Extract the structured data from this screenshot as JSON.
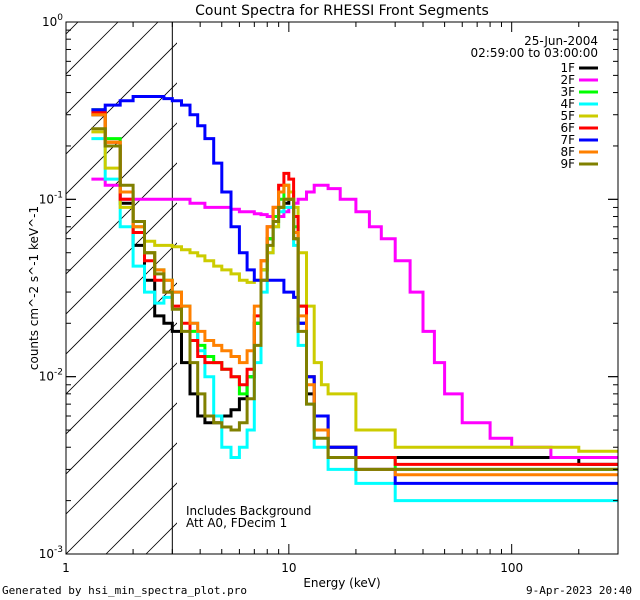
{
  "chart_data": {
    "type": "line",
    "title": "Count Spectra for RHESSI Front Segments",
    "xlabel": "Energy (keV)",
    "ylabel": "counts cm^-2 s^-1 keV^-1",
    "xscale": "log",
    "yscale": "log",
    "xlim": [
      1,
      300
    ],
    "ylim": [
      0.001,
      1
    ],
    "x_ticks": [
      {
        "value": 1,
        "label": "1"
      },
      {
        "value": 10,
        "label": "10"
      },
      {
        "value": 100,
        "label": "100"
      }
    ],
    "y_ticks": [
      {
        "value": 0.001,
        "base": "10",
        "exp": "-3"
      },
      {
        "value": 0.01,
        "base": "10",
        "exp": "-2"
      },
      {
        "value": 0.1,
        "base": "10",
        "exp": "-1"
      },
      {
        "value": 1,
        "base": "10",
        "exp": "0"
      }
    ],
    "date": "25-Jun-2004",
    "time_range": "02:59:00 to 03:00:00",
    "annotation_lines": [
      "Includes Background",
      "Att A0, FDecim 1"
    ],
    "shaded_region_max_kev": 3,
    "legend_position": "top-right",
    "series": [
      {
        "name": "1F",
        "color": "#000000",
        "x": [
          1.3,
          1.5,
          1.75,
          2,
          2.25,
          2.5,
          2.75,
          3,
          3.3,
          3.6,
          3.9,
          4.2,
          4.6,
          5,
          5.5,
          6,
          6.5,
          7,
          7.5,
          8,
          8.5,
          9,
          9.5,
          10,
          10.5,
          11,
          12,
          13,
          15,
          20,
          30,
          50,
          80,
          120,
          200,
          300
        ],
        "y": [
          0.3,
          0.2,
          0.095,
          0.055,
          0.035,
          0.022,
          0.02,
          0.018,
          0.012,
          0.008,
          0.006,
          0.0055,
          0.0055,
          0.006,
          0.0065,
          0.0075,
          0.01,
          0.02,
          0.04,
          0.06,
          0.08,
          0.09,
          0.095,
          0.1,
          0.06,
          0.02,
          0.008,
          0.005,
          0.004,
          0.0035,
          0.0035,
          0.0035,
          0.0035,
          0.0035,
          0.0032,
          0.0032
        ]
      },
      {
        "name": "2F",
        "color": "#ff00ff",
        "x": [
          1.3,
          1.5,
          1.75,
          2,
          2.25,
          2.5,
          2.75,
          3,
          3.3,
          3.6,
          3.9,
          4.2,
          4.6,
          5,
          5.5,
          6,
          6.5,
          7,
          7.5,
          8,
          8.5,
          9,
          9.5,
          10,
          10.5,
          11,
          12,
          13,
          14,
          15,
          17,
          20,
          23,
          26,
          30,
          35,
          40,
          45,
          50,
          60,
          80,
          100,
          130,
          150,
          200,
          250,
          300
        ],
        "y": [
          0.13,
          0.12,
          0.1,
          0.1,
          0.1,
          0.1,
          0.1,
          0.1,
          0.1,
          0.095,
          0.095,
          0.09,
          0.09,
          0.09,
          0.088,
          0.085,
          0.085,
          0.083,
          0.082,
          0.08,
          0.08,
          0.08,
          0.085,
          0.09,
          0.095,
          0.1,
          0.11,
          0.12,
          0.12,
          0.115,
          0.1,
          0.085,
          0.07,
          0.06,
          0.045,
          0.03,
          0.018,
          0.012,
          0.008,
          0.0055,
          0.0045,
          0.004,
          0.004,
          0.0035,
          0.0035,
          0.0035,
          0.0035
        ]
      },
      {
        "name": "3F",
        "color": "#00ff00",
        "x": [
          1.3,
          1.5,
          1.75,
          2,
          2.25,
          2.5,
          2.75,
          3,
          3.3,
          3.6,
          3.9,
          4.2,
          4.6,
          5,
          5.5,
          6,
          6.5,
          7,
          7.5,
          8,
          8.5,
          9,
          9.5,
          10,
          10.5,
          11,
          12,
          13,
          15,
          20,
          30,
          50,
          80,
          120,
          200,
          300
        ],
        "y": [
          0.32,
          0.22,
          0.11,
          0.07,
          0.05,
          0.04,
          0.035,
          0.03,
          0.025,
          0.018,
          0.015,
          0.013,
          0.012,
          0.011,
          0.01,
          0.008,
          0.01,
          0.02,
          0.04,
          0.06,
          0.08,
          0.1,
          0.12,
          0.11,
          0.07,
          0.025,
          0.01,
          0.006,
          0.004,
          0.0035,
          0.003,
          0.003,
          0.003,
          0.003,
          0.003,
          0.003
        ]
      },
      {
        "name": "4F",
        "color": "#00ffff",
        "x": [
          1.3,
          1.5,
          1.75,
          2,
          2.25,
          2.5,
          2.75,
          3,
          3.3,
          3.6,
          3.9,
          4.2,
          4.6,
          5,
          5.5,
          6,
          6.5,
          7,
          7.5,
          8,
          8.5,
          9,
          9.5,
          10,
          10.5,
          11,
          12,
          13,
          15,
          20,
          30,
          50,
          80,
          120,
          200,
          300
        ],
        "y": [
          0.22,
          0.13,
          0.07,
          0.042,
          0.03,
          0.026,
          0.028,
          0.03,
          0.025,
          0.02,
          0.014,
          0.01,
          0.006,
          0.004,
          0.0035,
          0.004,
          0.005,
          0.012,
          0.03,
          0.05,
          0.07,
          0.085,
          0.09,
          0.09,
          0.055,
          0.015,
          0.007,
          0.004,
          0.003,
          0.0025,
          0.002,
          0.002,
          0.002,
          0.002,
          0.002,
          0.002
        ]
      },
      {
        "name": "5F",
        "color": "#cccc00",
        "x": [
          1.3,
          1.5,
          1.75,
          2,
          2.25,
          2.5,
          2.75,
          3,
          3.3,
          3.6,
          3.9,
          4.2,
          4.6,
          5,
          5.5,
          6,
          6.5,
          7,
          7.5,
          8,
          8.5,
          9,
          9.5,
          10,
          10.5,
          11,
          12,
          13,
          14,
          15,
          20,
          30,
          50,
          80,
          120,
          200,
          300
        ],
        "y": [
          0.24,
          0.15,
          0.09,
          0.065,
          0.058,
          0.055,
          0.055,
          0.054,
          0.052,
          0.05,
          0.048,
          0.045,
          0.042,
          0.04,
          0.038,
          0.035,
          0.034,
          0.035,
          0.04,
          0.05,
          0.07,
          0.09,
          0.1,
          0.11,
          0.09,
          0.05,
          0.025,
          0.012,
          0.009,
          0.008,
          0.005,
          0.004,
          0.004,
          0.004,
          0.004,
          0.0038,
          0.0038
        ]
      },
      {
        "name": "6F",
        "color": "#ff0000",
        "x": [
          1.3,
          1.5,
          1.75,
          2,
          2.25,
          2.5,
          2.75,
          3,
          3.3,
          3.6,
          3.9,
          4.2,
          4.6,
          5,
          5.5,
          6,
          6.5,
          7,
          7.5,
          8,
          8.5,
          9,
          9.5,
          10,
          10.5,
          11,
          12,
          13,
          15,
          20,
          30,
          50,
          80,
          120,
          200,
          300
        ],
        "y": [
          0.31,
          0.21,
          0.1,
          0.065,
          0.045,
          0.035,
          0.03,
          0.025,
          0.02,
          0.016,
          0.013,
          0.012,
          0.012,
          0.011,
          0.01,
          0.009,
          0.011,
          0.022,
          0.045,
          0.07,
          0.09,
          0.12,
          0.14,
          0.13,
          0.08,
          0.025,
          0.01,
          0.006,
          0.004,
          0.0035,
          0.0032,
          0.0032,
          0.0032,
          0.0032,
          0.0032,
          0.0032
        ]
      },
      {
        "name": "7F",
        "color": "#0000ff",
        "x": [
          1.3,
          1.5,
          1.75,
          2,
          2.25,
          2.5,
          2.75,
          3,
          3.3,
          3.6,
          3.9,
          4.2,
          4.6,
          5,
          5.5,
          6,
          6.5,
          7,
          7.5,
          8,
          8.5,
          9,
          9.5,
          10,
          10.5,
          11,
          12,
          13,
          15,
          20,
          30,
          50,
          80,
          120,
          200,
          300
        ],
        "y": [
          0.32,
          0.34,
          0.36,
          0.38,
          0.38,
          0.38,
          0.37,
          0.36,
          0.34,
          0.3,
          0.26,
          0.22,
          0.16,
          0.11,
          0.07,
          0.05,
          0.04,
          0.035,
          0.035,
          0.035,
          0.035,
          0.035,
          0.03,
          0.03,
          0.028,
          0.02,
          0.01,
          0.006,
          0.004,
          0.003,
          0.0025,
          0.0025,
          0.0025,
          0.0025,
          0.0025,
          0.0025
        ]
      },
      {
        "name": "8F",
        "color": "#ff8000",
        "x": [
          1.3,
          1.5,
          1.75,
          2,
          2.25,
          2.5,
          2.75,
          3,
          3.3,
          3.6,
          3.9,
          4.2,
          4.6,
          5,
          5.5,
          6,
          6.5,
          7,
          7.5,
          8,
          8.5,
          9,
          9.5,
          10,
          10.5,
          11,
          12,
          13,
          15,
          20,
          30,
          50,
          80,
          120,
          200,
          300
        ],
        "y": [
          0.3,
          0.21,
          0.11,
          0.07,
          0.05,
          0.04,
          0.035,
          0.03,
          0.025,
          0.02,
          0.018,
          0.016,
          0.015,
          0.014,
          0.013,
          0.012,
          0.014,
          0.025,
          0.045,
          0.07,
          0.09,
          0.11,
          0.12,
          0.1,
          0.065,
          0.022,
          0.009,
          0.005,
          0.0035,
          0.003,
          0.0028,
          0.0028,
          0.0028,
          0.0028,
          0.0028,
          0.0028
        ]
      },
      {
        "name": "9F",
        "color": "#808000",
        "x": [
          1.3,
          1.5,
          1.75,
          2,
          2.25,
          2.5,
          2.75,
          3,
          3.3,
          3.6,
          3.9,
          4.2,
          4.6,
          5,
          5.5,
          6,
          6.5,
          7,
          7.5,
          8,
          8.5,
          9,
          9.5,
          10,
          10.5,
          11,
          12,
          13,
          15,
          20,
          30,
          50,
          80,
          120,
          200,
          300
        ],
        "y": [
          0.25,
          0.2,
          0.12,
          0.075,
          0.05,
          0.038,
          0.03,
          0.024,
          0.018,
          0.012,
          0.008,
          0.006,
          0.0055,
          0.0052,
          0.005,
          0.0055,
          0.0075,
          0.015,
          0.035,
          0.055,
          0.075,
          0.09,
          0.1,
          0.1,
          0.06,
          0.018,
          0.007,
          0.0045,
          0.0035,
          0.003,
          0.003,
          0.003,
          0.003,
          0.003,
          0.003,
          0.003
        ]
      }
    ]
  },
  "footer": {
    "generated_by": "Generated by hsi_min_spectra_plot.pro",
    "timestamp": "9-Apr-2023 20:40"
  }
}
